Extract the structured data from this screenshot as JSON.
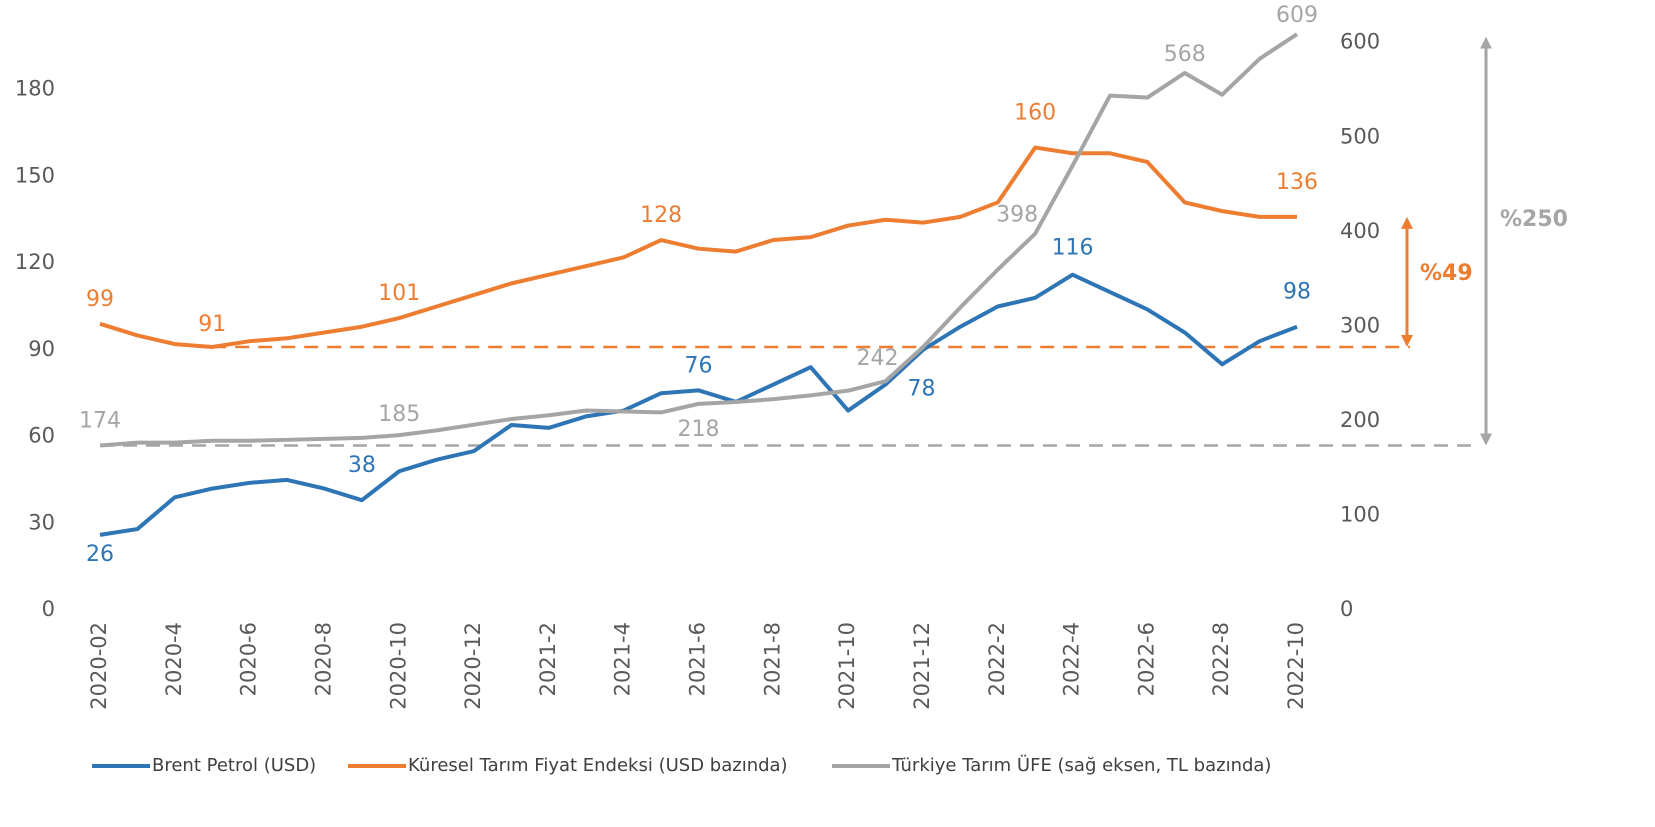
{
  "chart_data": {
    "type": "line",
    "categories": [
      "2020-02",
      null,
      "2020-4",
      null,
      "2020-6",
      null,
      "2020-8",
      null,
      "2020-10",
      null,
      "2020-12",
      null,
      "2021-2",
      null,
      "2021-4",
      null,
      "2021-6",
      null,
      "2021-8",
      null,
      "2021-10",
      null,
      "2021-12",
      null,
      "2022-2",
      null,
      "2022-4",
      null,
      "2022-6",
      null,
      "2022-8",
      null,
      "2022-10"
    ],
    "series": [
      {
        "name": "Brent Petrol (USD)",
        "color": "#2e75b6",
        "values": [
          26,
          28,
          39,
          42,
          44,
          45,
          42,
          38,
          48,
          52,
          55,
          64,
          63,
          67,
          69,
          75,
          76,
          72,
          78,
          84,
          69,
          78,
          90,
          98,
          105,
          108,
          116,
          110,
          104,
          96,
          85,
          93,
          98
        ]
      },
      {
        "name": "Küresel Tarım Fiyat Endeksi (USD bazında)",
        "color": "#ed7d31",
        "values": [
          99,
          95,
          92,
          91,
          93,
          94,
          96,
          98,
          101,
          105,
          109,
          113,
          116,
          119,
          122,
          128,
          125,
          124,
          128,
          129,
          133,
          135,
          134,
          136,
          141,
          160,
          158,
          158,
          155,
          141,
          138,
          136,
          136
        ]
      },
      {
        "name": "Türkiye Tarım ÜFE (sağ eksen, TL bazında)",
        "color": "#a5a5a5",
        "axis": "y2",
        "values": [
          174,
          177,
          177,
          179,
          179,
          180,
          181,
          182,
          185,
          190,
          196,
          202,
          206,
          211,
          210,
          209,
          218,
          220,
          223,
          227,
          232,
          242,
          278,
          320,
          360,
          398,
          470,
          544,
          542,
          568,
          545,
          583,
          609
        ]
      }
    ],
    "ylim": [
      0,
      210
    ],
    "yticks": [
      0,
      30,
      60,
      90,
      120,
      150,
      180
    ],
    "y2lim": [
      0,
      642
    ],
    "y2ticks": [
      0,
      100,
      200,
      300,
      400,
      500,
      600
    ],
    "annotations": [
      "%49",
      "%250"
    ]
  }
}
